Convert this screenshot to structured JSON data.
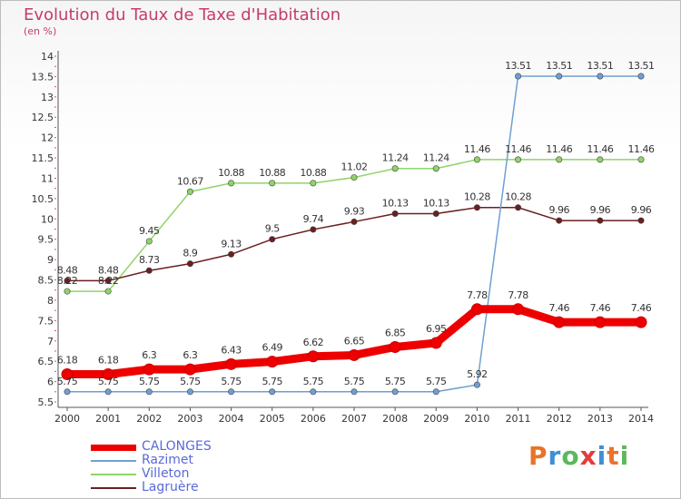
{
  "title": "Evolution du Taux de Taxe d'Habitation",
  "subtitle": "(en %)",
  "logo": {
    "letters": [
      "P",
      "r",
      "o",
      "x",
      "i",
      "t",
      "i"
    ],
    "colors": [
      "#e8732a",
      "#3e8fd6",
      "#5cb85c",
      "#e23c3c",
      "#3e8fd6",
      "#e8732a",
      "#5cb85c"
    ]
  },
  "chart_data": {
    "type": "line",
    "x": [
      "2000",
      "2001",
      "2002",
      "2003",
      "2004",
      "2005",
      "2006",
      "2007",
      "2008",
      "2009",
      "2010",
      "2011",
      "2012",
      "2013",
      "2014"
    ],
    "ylim": [
      5.5,
      14
    ],
    "yticks": [
      "5.5",
      "6",
      "6.5",
      "7",
      "7.5",
      "8",
      "8.5",
      "9",
      "9.5",
      "10",
      "10.5",
      "11",
      "11.5",
      "12",
      "12.5",
      "13",
      "13.5",
      "14"
    ],
    "grid": false,
    "legend_position": "bottom-left",
    "series": [
      {
        "name": "CALONGES",
        "color": "#ee0000",
        "values": [
          6.18,
          6.18,
          6.3,
          6.3,
          6.43,
          6.49,
          6.62,
          6.65,
          6.85,
          6.95,
          7.78,
          7.78,
          7.46,
          7.46,
          7.46
        ],
        "labels": [
          "6.18",
          "6.18",
          "6.3",
          "6.3",
          "6.43",
          "6.49",
          "6.62",
          "6.65",
          "6.85",
          "6.95",
          "7.78",
          "7.78",
          "7.46",
          "7.46",
          "7.46"
        ]
      },
      {
        "name": "Razimet",
        "color": "#6e9fd4",
        "values": [
          5.75,
          5.75,
          5.75,
          5.75,
          5.75,
          5.75,
          5.75,
          5.75,
          5.75,
          5.75,
          5.92,
          13.51,
          13.51,
          13.51,
          13.51
        ],
        "labels": [
          "5.75",
          "5.75",
          "5.75",
          "5.75",
          "5.75",
          "5.75",
          "5.75",
          "5.75",
          "5.75",
          "5.75",
          "5.92",
          "13.51",
          "13.51",
          "13.51",
          "13.51"
        ]
      },
      {
        "name": "Villeton",
        "color": "#8fd468",
        "values": [
          8.22,
          8.22,
          9.45,
          10.67,
          10.88,
          10.88,
          10.88,
          11.02,
          11.24,
          11.24,
          11.46,
          11.46,
          11.46,
          11.46,
          11.46
        ],
        "labels": [
          "8.22",
          "8.22",
          "9.45",
          "10.67",
          "10.88",
          "10.88",
          "10.88",
          "11.02",
          "11.24",
          "11.24",
          "11.46",
          "11.46",
          "11.46",
          "11.46",
          "11.46"
        ]
      },
      {
        "name": "Lagruère",
        "color": "#6b1f1f",
        "values": [
          8.48,
          8.48,
          8.73,
          8.9,
          9.13,
          9.5,
          9.74,
          9.93,
          10.13,
          10.13,
          10.28,
          10.28,
          9.96,
          9.96,
          9.96
        ],
        "labels": [
          "8.48",
          "8.48",
          "8.73",
          "8.9",
          "9.13",
          "9.5",
          "9.74",
          "9.93",
          "10.13",
          "10.13",
          "10.28",
          "10.28",
          "9.96",
          "9.96",
          "9.96"
        ]
      }
    ]
  }
}
